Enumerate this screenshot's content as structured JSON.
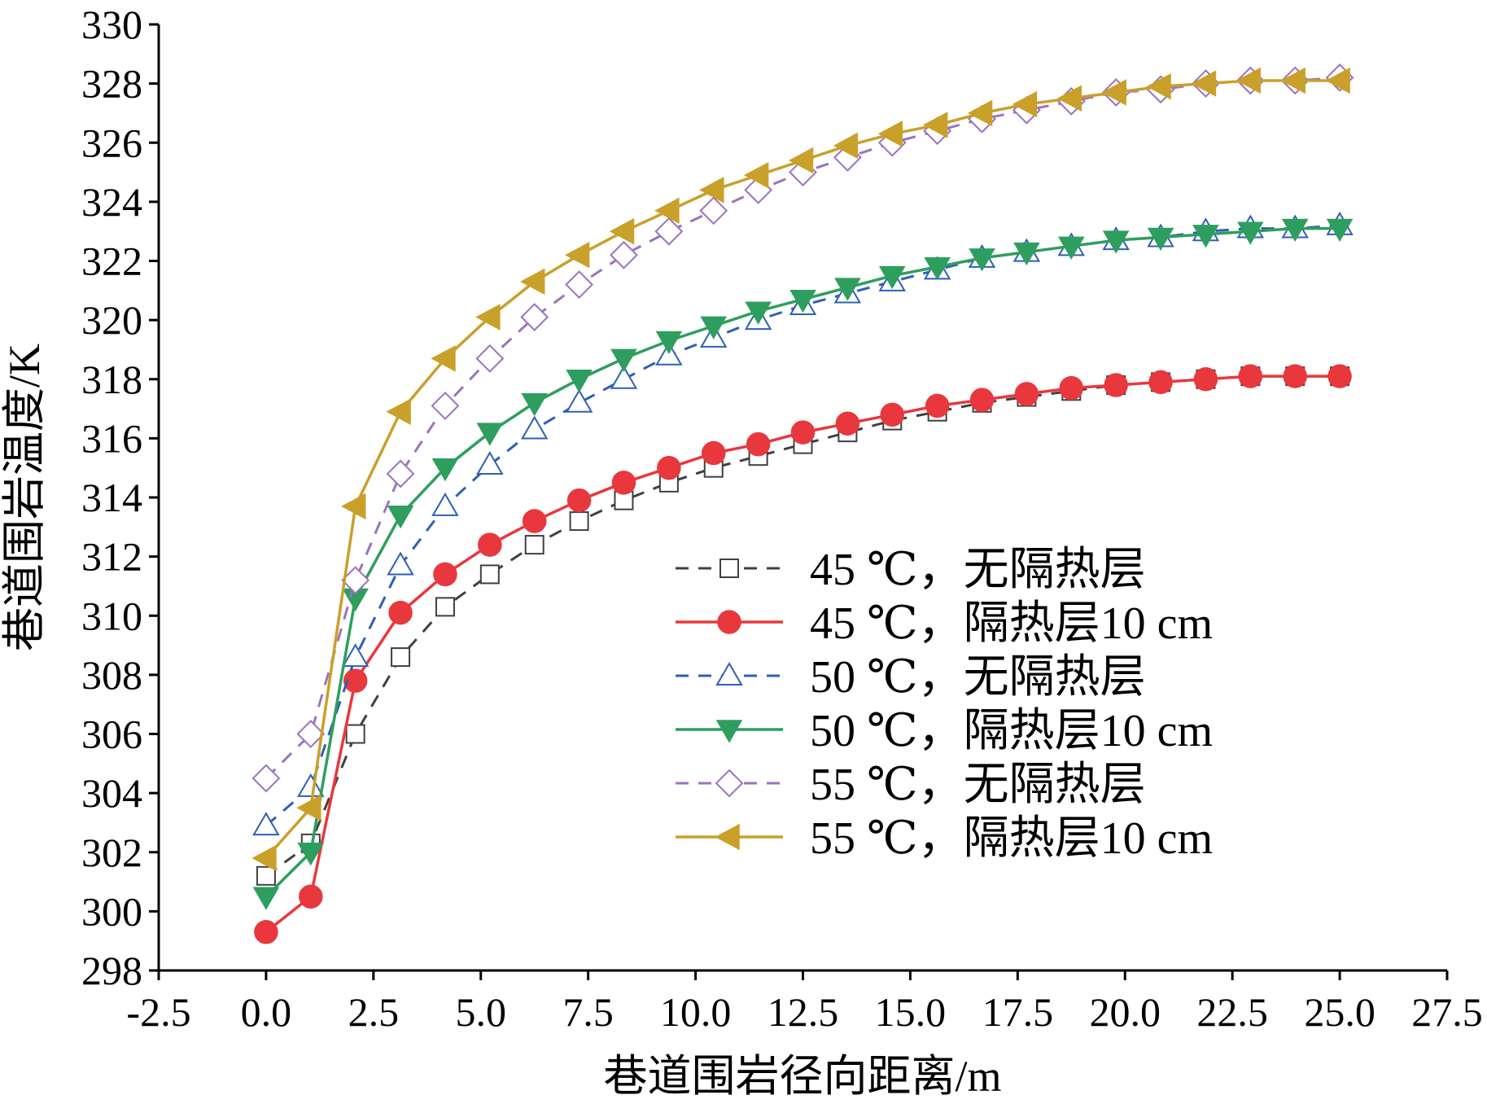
{
  "chart_data": {
    "type": "line",
    "xlabel": "巷道围岩径向距离/m",
    "ylabel": "巷道围岩温度/K",
    "xlim": [
      -2.5,
      27.5
    ],
    "ylim": [
      298,
      330
    ],
    "x_ticks": [
      "-2.5",
      "0.0",
      "2.5",
      "5.0",
      "7.5",
      "10.0",
      "12.5",
      "15.0",
      "17.5",
      "20.0",
      "22.5",
      "25.0",
      "27.5"
    ],
    "y_ticks": [
      "298",
      "300",
      "302",
      "304",
      "306",
      "308",
      "310",
      "312",
      "314",
      "316",
      "318",
      "320",
      "322",
      "324",
      "326",
      "328",
      "330"
    ],
    "grid": false,
    "legend_position": "lower-right",
    "x": [
      0,
      1.04,
      2.08,
      3.13,
      4.17,
      5.21,
      6.25,
      7.29,
      8.33,
      9.38,
      10.42,
      11.46,
      12.5,
      13.54,
      14.58,
      15.63,
      16.67,
      17.71,
      18.75,
      19.79,
      20.83,
      21.88,
      22.92,
      23.96,
      25.0
    ],
    "series": [
      {
        "name": "45 ℃，无隔热层",
        "color": "#404040",
        "dash": true,
        "marker": "square-open",
        "values": [
          301.2,
          302.3,
          306.0,
          308.6,
          310.3,
          311.4,
          312.4,
          313.2,
          313.9,
          314.5,
          315.0,
          315.4,
          315.8,
          316.2,
          316.6,
          316.9,
          317.2,
          317.4,
          317.6,
          317.8,
          317.9,
          318.0,
          318.1,
          318.1,
          318.1
        ]
      },
      {
        "name": "45 ℃，隔热层10 cm",
        "color": "#e8383d",
        "dash": false,
        "marker": "circle-filled",
        "values": [
          299.3,
          300.5,
          307.8,
          310.1,
          311.4,
          312.4,
          313.2,
          313.9,
          314.5,
          315.0,
          315.5,
          315.8,
          316.2,
          316.5,
          316.8,
          317.1,
          317.3,
          317.5,
          317.7,
          317.8,
          317.9,
          318.0,
          318.1,
          318.1,
          318.1
        ]
      },
      {
        "name": "50 ℃，无隔热层",
        "color": "#2e5fb5",
        "dash": true,
        "marker": "triangle-up-open",
        "values": [
          302.9,
          304.2,
          308.6,
          311.7,
          313.7,
          315.1,
          316.3,
          317.2,
          318.0,
          318.8,
          319.4,
          320.0,
          320.5,
          320.9,
          321.3,
          321.7,
          322.1,
          322.3,
          322.5,
          322.7,
          322.8,
          323.0,
          323.1,
          323.1,
          323.2
        ]
      },
      {
        "name": "50 ℃，隔热层10 cm",
        "color": "#2e9e5e",
        "dash": false,
        "marker": "triangle-down-filled",
        "values": [
          300.5,
          302.0,
          310.6,
          313.4,
          315.0,
          316.2,
          317.2,
          318.0,
          318.7,
          319.3,
          319.8,
          320.3,
          320.7,
          321.1,
          321.5,
          321.8,
          322.1,
          322.3,
          322.5,
          322.7,
          322.8,
          322.9,
          323.0,
          323.1,
          323.1
        ]
      },
      {
        "name": "55 ℃，无隔热层",
        "color": "#9b73bd",
        "dash": true,
        "marker": "diamond-open",
        "values": [
          304.5,
          306.0,
          311.2,
          314.8,
          317.1,
          318.7,
          320.1,
          321.2,
          322.2,
          323.0,
          323.7,
          324.4,
          325.0,
          325.5,
          326.0,
          326.4,
          326.8,
          327.1,
          327.4,
          327.7,
          327.8,
          328.0,
          328.1,
          328.1,
          328.2
        ]
      },
      {
        "name": "55 ℃，隔热层10 cm",
        "color": "#c9a02a",
        "dash": false,
        "marker": "triangle-left-filled",
        "values": [
          301.8,
          303.5,
          313.7,
          316.9,
          318.7,
          320.1,
          321.3,
          322.2,
          323.0,
          323.7,
          324.4,
          324.9,
          325.4,
          325.9,
          326.3,
          326.6,
          327.0,
          327.3,
          327.5,
          327.7,
          327.9,
          328.0,
          328.1,
          328.1,
          328.1
        ]
      }
    ]
  }
}
